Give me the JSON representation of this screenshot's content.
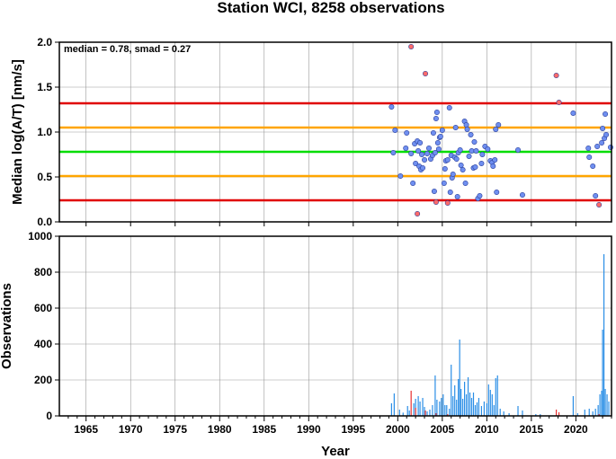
{
  "chart_data": [
    {
      "type": "scatter",
      "title": "Station WCI, 8258 observations",
      "annotation": "median = 0.78, smad = 0.27",
      "xlabel": "",
      "ylabel": "Median log(A/T) [nm/s]",
      "xlim": [
        1962,
        2024
      ],
      "ylim": [
        0,
        2.0
      ],
      "yticks": [
        "0.0",
        "0.5",
        "1.0",
        "1.5",
        "2.0"
      ],
      "grid": true,
      "reference_lines": [
        {
          "y": 1.32,
          "color": "#e00000"
        },
        {
          "y": 1.05,
          "color": "#ffa500"
        },
        {
          "y": 0.78,
          "color": "#00dd00"
        },
        {
          "y": 0.51,
          "color": "#ffa500"
        },
        {
          "y": 0.24,
          "color": "#e00000"
        }
      ],
      "series": [
        {
          "color": "#6f8ff0",
          "points": [
            [
              1999.3,
              1.28
            ],
            [
              1999.5,
              0.77
            ],
            [
              1999.7,
              1.02
            ],
            [
              2000.3,
              0.51
            ],
            [
              2000.9,
              0.82
            ],
            [
              2001.0,
              0.99
            ],
            [
              2001.5,
              0.76
            ],
            [
              2001.7,
              0.43
            ],
            [
              2001.9,
              0.87
            ],
            [
              2002.0,
              0.65
            ],
            [
              2002.2,
              0.9
            ],
            [
              2002.3,
              0.79
            ],
            [
              2002.4,
              0.62
            ],
            [
              2002.5,
              0.88
            ],
            [
              2002.6,
              0.58
            ],
            [
              2002.7,
              0.75
            ],
            [
              2002.8,
              0.6
            ],
            [
              2003.0,
              0.69
            ],
            [
              2003.3,
              0.76
            ],
            [
              2003.5,
              0.82
            ],
            [
              2003.7,
              0.7
            ],
            [
              2003.9,
              0.74
            ],
            [
              2004.0,
              0.99
            ],
            [
              2004.1,
              0.34
            ],
            [
              2004.2,
              0.77
            ],
            [
              2004.3,
              1.15
            ],
            [
              2004.4,
              1.22
            ],
            [
              2004.5,
              0.88
            ],
            [
              2004.6,
              0.81
            ],
            [
              2004.7,
              0.94
            ],
            [
              2004.8,
              0.95
            ],
            [
              2005.0,
              1.02
            ],
            [
              2005.2,
              0.43
            ],
            [
              2005.3,
              0.59
            ],
            [
              2005.4,
              0.68
            ],
            [
              2005.6,
              0.69
            ],
            [
              2005.8,
              1.27
            ],
            [
              2005.9,
              0.33
            ],
            [
              2006.0,
              0.74
            ],
            [
              2006.1,
              0.49
            ],
            [
              2006.2,
              0.53
            ],
            [
              2006.4,
              0.72
            ],
            [
              2006.5,
              1.05
            ],
            [
              2006.6,
              0.7
            ],
            [
              2006.7,
              0.28
            ],
            [
              2006.8,
              0.77
            ],
            [
              2007.0,
              0.8
            ],
            [
              2007.1,
              0.63
            ],
            [
              2007.3,
              0.58
            ],
            [
              2007.5,
              1.12
            ],
            [
              2007.6,
              0.43
            ],
            [
              2007.7,
              1.08
            ],
            [
              2007.8,
              1.03
            ],
            [
              2008.0,
              0.73
            ],
            [
              2008.2,
              0.97
            ],
            [
              2008.3,
              0.79
            ],
            [
              2008.5,
              0.6
            ],
            [
              2008.6,
              0.89
            ],
            [
              2008.7,
              0.61
            ],
            [
              2008.8,
              0.79
            ],
            [
              2009.0,
              0.26
            ],
            [
              2009.2,
              0.29
            ],
            [
              2009.4,
              0.65
            ],
            [
              2009.5,
              0.75
            ],
            [
              2009.8,
              0.84
            ],
            [
              2010.1,
              0.81
            ],
            [
              2010.4,
              0.68
            ],
            [
              2010.6,
              0.66
            ],
            [
              2010.7,
              0.62
            ],
            [
              2010.9,
              0.69
            ],
            [
              2011.0,
              1.03
            ],
            [
              2011.1,
              0.33
            ],
            [
              2011.3,
              1.08
            ],
            [
              2013.5,
              0.8
            ],
            [
              2014.0,
              0.3
            ],
            [
              2019.7,
              1.21
            ],
            [
              2021.4,
              0.82
            ],
            [
              2021.5,
              0.72
            ],
            [
              2021.9,
              0.62
            ],
            [
              2022.2,
              0.29
            ],
            [
              2022.4,
              0.84
            ],
            [
              2022.9,
              0.88
            ],
            [
              2023.0,
              1.04
            ],
            [
              2023.2,
              0.93
            ],
            [
              2023.3,
              1.2
            ],
            [
              2023.4,
              0.97
            ],
            [
              2023.9,
              0.83
            ]
          ]
        },
        {
          "color": "#ff6a6a",
          "points": [
            [
              2001.5,
              1.95
            ],
            [
              2002.2,
              0.09
            ],
            [
              2003.1,
              1.65
            ],
            [
              2004.3,
              0.22
            ],
            [
              2005.6,
              0.21
            ],
            [
              2017.8,
              1.63
            ],
            [
              2018.1,
              1.33
            ],
            [
              2022.6,
              0.19
            ]
          ]
        }
      ]
    },
    {
      "type": "bar",
      "title": "",
      "xlabel": "Year",
      "ylabel": "Observations",
      "xlim": [
        1962,
        2024
      ],
      "ylim": [
        0,
        1000
      ],
      "xticks": [
        "1965",
        "1970",
        "1975",
        "1980",
        "1985",
        "1990",
        "1995",
        "2000",
        "2005",
        "2010",
        "2015",
        "2020"
      ],
      "yticks": [
        "0",
        "200",
        "400",
        "600",
        "800",
        "1000"
      ],
      "grid": true,
      "series": [
        {
          "color": "#2a8ee6",
          "bars": [
            [
              1999.3,
              70
            ],
            [
              1999.6,
              125
            ],
            [
              2000.2,
              35
            ],
            [
              2000.6,
              18
            ],
            [
              2001.1,
              55
            ],
            [
              2001.3,
              30
            ],
            [
              2001.8,
              70
            ],
            [
              2002.0,
              95
            ],
            [
              2002.3,
              110
            ],
            [
              2002.5,
              80
            ],
            [
              2002.8,
              100
            ],
            [
              2003.0,
              50
            ],
            [
              2003.3,
              25
            ],
            [
              2003.6,
              35
            ],
            [
              2003.9,
              60
            ],
            [
              2004.2,
              225
            ],
            [
              2004.4,
              90
            ],
            [
              2004.7,
              80
            ],
            [
              2004.9,
              100
            ],
            [
              2005.1,
              120
            ],
            [
              2005.3,
              60
            ],
            [
              2005.5,
              60
            ],
            [
              2005.8,
              40
            ],
            [
              2006.0,
              285
            ],
            [
              2006.2,
              110
            ],
            [
              2006.4,
              170
            ],
            [
              2006.6,
              90
            ],
            [
              2006.8,
              205
            ],
            [
              2006.95,
              425
            ],
            [
              2007.1,
              150
            ],
            [
              2007.3,
              95
            ],
            [
              2007.5,
              190
            ],
            [
              2007.7,
              120
            ],
            [
              2007.9,
              215
            ],
            [
              2008.1,
              130
            ],
            [
              2008.3,
              100
            ],
            [
              2008.5,
              130
            ],
            [
              2008.7,
              60
            ],
            [
              2008.9,
              75
            ],
            [
              2009.1,
              100
            ],
            [
              2009.4,
              55
            ],
            [
              2009.7,
              80
            ],
            [
              2010.0,
              70
            ],
            [
              2010.2,
              175
            ],
            [
              2010.4,
              145
            ],
            [
              2010.6,
              120
            ],
            [
              2010.8,
              60
            ],
            [
              2011.0,
              210
            ],
            [
              2011.2,
              225
            ],
            [
              2011.5,
              40
            ],
            [
              2011.9,
              25
            ],
            [
              2012.5,
              15
            ],
            [
              2013.5,
              55
            ],
            [
              2014.0,
              30
            ],
            [
              2015.5,
              10
            ],
            [
              2016.0,
              10
            ],
            [
              2019.7,
              110
            ],
            [
              2020.2,
              15
            ],
            [
              2021.0,
              35
            ],
            [
              2021.5,
              40
            ],
            [
              2021.9,
              25
            ],
            [
              2022.2,
              40
            ],
            [
              2022.5,
              60
            ],
            [
              2022.7,
              120
            ],
            [
              2022.9,
              140
            ],
            [
              2023.0,
              480
            ],
            [
              2023.15,
              900
            ],
            [
              2023.3,
              150
            ],
            [
              2023.5,
              120
            ],
            [
              2023.7,
              80
            ]
          ]
        },
        {
          "color": "#e83030",
          "bars": [
            [
              2001.5,
              140
            ],
            [
              2002.0,
              45
            ],
            [
              2003.1,
              30
            ],
            [
              2004.3,
              15
            ],
            [
              2005.6,
              10
            ],
            [
              2017.8,
              35
            ],
            [
              2018.1,
              20
            ],
            [
              2022.6,
              10
            ]
          ]
        }
      ]
    }
  ]
}
